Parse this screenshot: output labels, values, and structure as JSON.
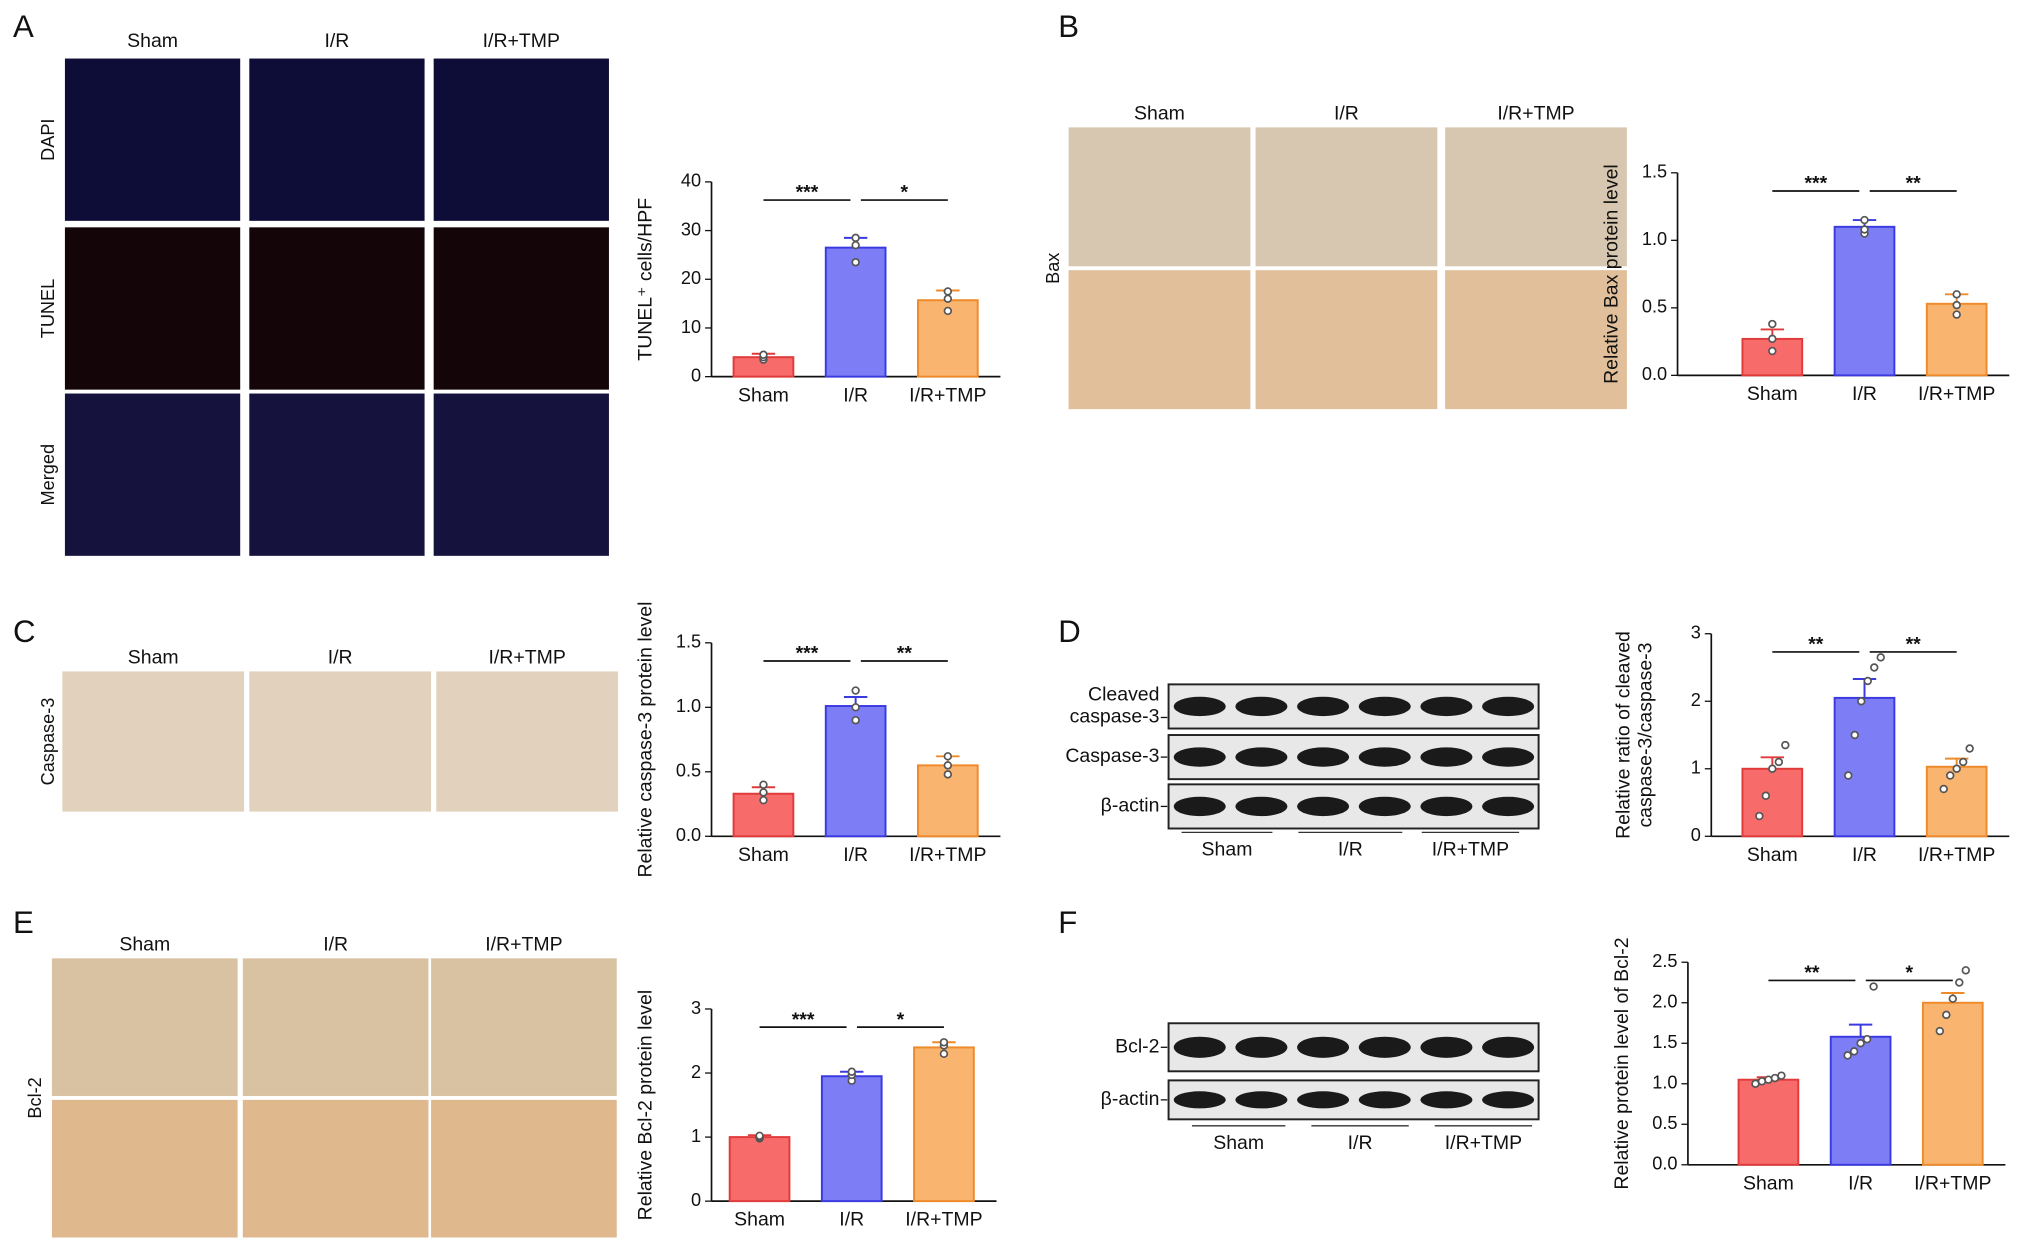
{
  "panels": [
    {
      "letter": "A",
      "columns": [
        "Sham",
        "I/R",
        "I/R+TMP"
      ],
      "rows": [
        "DAPI",
        "TUNEL",
        "Merged"
      ]
    },
    {
      "letter": "B",
      "columns": [
        "Sham",
        "I/R",
        "I/R+TMP"
      ],
      "rows": [
        "Bax"
      ]
    },
    {
      "letter": "C",
      "columns": [
        "Sham",
        "I/R",
        "I/R+TMP"
      ],
      "rows": [
        "Caspase-3"
      ]
    },
    {
      "letter": "D",
      "blot_rows": [
        [
          "Cleaved",
          "caspase-3"
        ],
        [
          "Caspase-3"
        ],
        [
          "β-actin"
        ]
      ],
      "groups": [
        "Sham",
        "I/R",
        "I/R+TMP"
      ]
    },
    {
      "letter": "E",
      "columns": [
        "Sham",
        "I/R",
        "I/R+TMP"
      ],
      "rows": [
        "Bcl-2"
      ]
    },
    {
      "letter": "F",
      "blot_rows": [
        [
          "Bcl-2"
        ],
        [
          "β-actin"
        ]
      ],
      "groups": [
        "Sham",
        "I/R",
        "I/R+TMP"
      ]
    }
  ],
  "chart_data": [
    {
      "type": "bar",
      "ylabel": [
        "TUNEL⁺ cells/HPF"
      ],
      "categories": [
        "Sham",
        "I/R",
        "I/R+TMP"
      ],
      "values": [
        4,
        26.5,
        15.7
      ],
      "errors": [
        0.7,
        2,
        2
      ],
      "points": [
        [
          3.5,
          4,
          4.5
        ],
        [
          23.5,
          27,
          28.5
        ],
        [
          13.5,
          16,
          17.5
        ]
      ],
      "ylim": [
        0,
        40
      ],
      "yticks": [
        0,
        10,
        20,
        30,
        40
      ],
      "significance": [
        {
          "pair": [
            0,
            1
          ],
          "label": "***"
        },
        {
          "pair": [
            1,
            2
          ],
          "label": "*"
        }
      ],
      "colors": [
        "#f76b6b",
        "#7d7df6",
        "#f9b46f"
      ],
      "edge_colors": [
        "#e03a3a",
        "#3a3ae0",
        "#ef8a2a"
      ]
    },
    {
      "type": "bar",
      "ylabel": [
        "Relative Bax protein level"
      ],
      "categories": [
        "Sham",
        "I/R",
        "I/R+TMP"
      ],
      "values": [
        0.27,
        1.1,
        0.53
      ],
      "errors": [
        0.07,
        0.05,
        0.07
      ],
      "points": [
        [
          0.18,
          0.27,
          0.38
        ],
        [
          1.05,
          1.08,
          1.15
        ],
        [
          0.45,
          0.52,
          0.6
        ]
      ],
      "ylim": [
        0,
        1.5
      ],
      "yticks": [
        {
          "value": 0,
          "label": "0.0"
        },
        0.5,
        {
          "value": 1,
          "label": "1.0"
        },
        1.5
      ],
      "significance": [
        {
          "pair": [
            0,
            1
          ],
          "label": "***"
        },
        {
          "pair": [
            1,
            2
          ],
          "label": "**"
        }
      ],
      "colors": [
        "#f76b6b",
        "#7d7df6",
        "#f9b46f"
      ],
      "edge_colors": [
        "#e03a3a",
        "#3a3ae0",
        "#ef8a2a"
      ]
    },
    {
      "type": "bar",
      "ylabel": [
        "Relative caspase-3 protein level"
      ],
      "categories": [
        "Sham",
        "I/R",
        "I/R+TMP"
      ],
      "values": [
        0.33,
        1.01,
        0.55
      ],
      "errors": [
        0.05,
        0.07,
        0.07
      ],
      "points": [
        [
          0.28,
          0.34,
          0.4
        ],
        [
          0.9,
          1.0,
          1.13
        ],
        [
          0.48,
          0.55,
          0.62
        ]
      ],
      "ylim": [
        0,
        1.5
      ],
      "yticks": [
        {
          "value": 0,
          "label": "0.0"
        },
        0.5,
        {
          "value": 1,
          "label": "1.0"
        },
        1.5
      ],
      "significance": [
        {
          "pair": [
            0,
            1
          ],
          "label": "***"
        },
        {
          "pair": [
            1,
            2
          ],
          "label": "**"
        }
      ],
      "colors": [
        "#f76b6b",
        "#7d7df6",
        "#f9b46f"
      ],
      "edge_colors": [
        "#e03a3a",
        "#3a3ae0",
        "#ef8a2a"
      ]
    },
    {
      "type": "bar",
      "ylabel": [
        "Relative ratio of cleaved",
        "caspase-3/caspase-3"
      ],
      "categories": [
        "Sham",
        "I/R",
        "I/R+TMP"
      ],
      "values": [
        1.0,
        2.05,
        1.03
      ],
      "errors": [
        0.17,
        0.28,
        0.12
      ],
      "points": [
        [
          0.3,
          0.6,
          1.0,
          1.1,
          1.35
        ],
        [
          0.9,
          1.5,
          2.0,
          2.3,
          2.5,
          2.65
        ],
        [
          0.7,
          0.9,
          1.0,
          1.1,
          1.3
        ]
      ],
      "ylim": [
        0,
        3
      ],
      "yticks": [
        0,
        1,
        2,
        3
      ],
      "significance": [
        {
          "pair": [
            0,
            1
          ],
          "label": "**"
        },
        {
          "pair": [
            1,
            2
          ],
          "label": "**"
        }
      ],
      "colors": [
        "#f76b6b",
        "#7d7df6",
        "#f9b46f"
      ],
      "edge_colors": [
        "#e03a3a",
        "#3a3ae0",
        "#ef8a2a"
      ]
    },
    {
      "type": "bar",
      "ylabel": [
        "Relative Bcl-2 protein level"
      ],
      "categories": [
        "Sham",
        "I/R",
        "I/R+TMP"
      ],
      "values": [
        1.0,
        1.95,
        2.4
      ],
      "errors": [
        0.03,
        0.07,
        0.08
      ],
      "points": [
        [
          0.98,
          1.0,
          1.02
        ],
        [
          1.88,
          1.97,
          2.02
        ],
        [
          2.3,
          2.43,
          2.48
        ]
      ],
      "ylim": [
        0,
        3
      ],
      "yticks": [
        0,
        1,
        2,
        3
      ],
      "significance": [
        {
          "pair": [
            0,
            1
          ],
          "label": "***"
        },
        {
          "pair": [
            1,
            2
          ],
          "label": "*"
        }
      ],
      "colors": [
        "#f76b6b",
        "#7d7df6",
        "#f9b46f"
      ],
      "edge_colors": [
        "#e03a3a",
        "#3a3ae0",
        "#ef8a2a"
      ]
    },
    {
      "type": "bar",
      "ylabel": [
        "Relative protein level of Bcl-2"
      ],
      "categories": [
        "Sham",
        "I/R",
        "I/R+TMP"
      ],
      "values": [
        1.05,
        1.58,
        2.0
      ],
      "errors": [
        0.03,
        0.15,
        0.12
      ],
      "points": [
        [
          1.0,
          1.03,
          1.05,
          1.07,
          1.1
        ],
        [
          1.35,
          1.4,
          1.5,
          1.55,
          2.2
        ],
        [
          1.65,
          1.85,
          2.05,
          2.25,
          2.4
        ]
      ],
      "ylim": [
        0,
        2.5
      ],
      "yticks": [
        {
          "value": 0,
          "label": "0.0"
        },
        0.5,
        {
          "value": 1,
          "label": "1.0"
        },
        1.5,
        {
          "value": 2,
          "label": "2.0"
        },
        2.5
      ],
      "significance": [
        {
          "pair": [
            0,
            1
          ],
          "label": "**"
        },
        {
          "pair": [
            1,
            2
          ],
          "label": "*"
        }
      ],
      "colors": [
        "#f76b6b",
        "#7d7df6",
        "#f9b46f"
      ],
      "edge_colors": [
        "#e03a3a",
        "#3a3ae0",
        "#ef8a2a"
      ]
    }
  ]
}
